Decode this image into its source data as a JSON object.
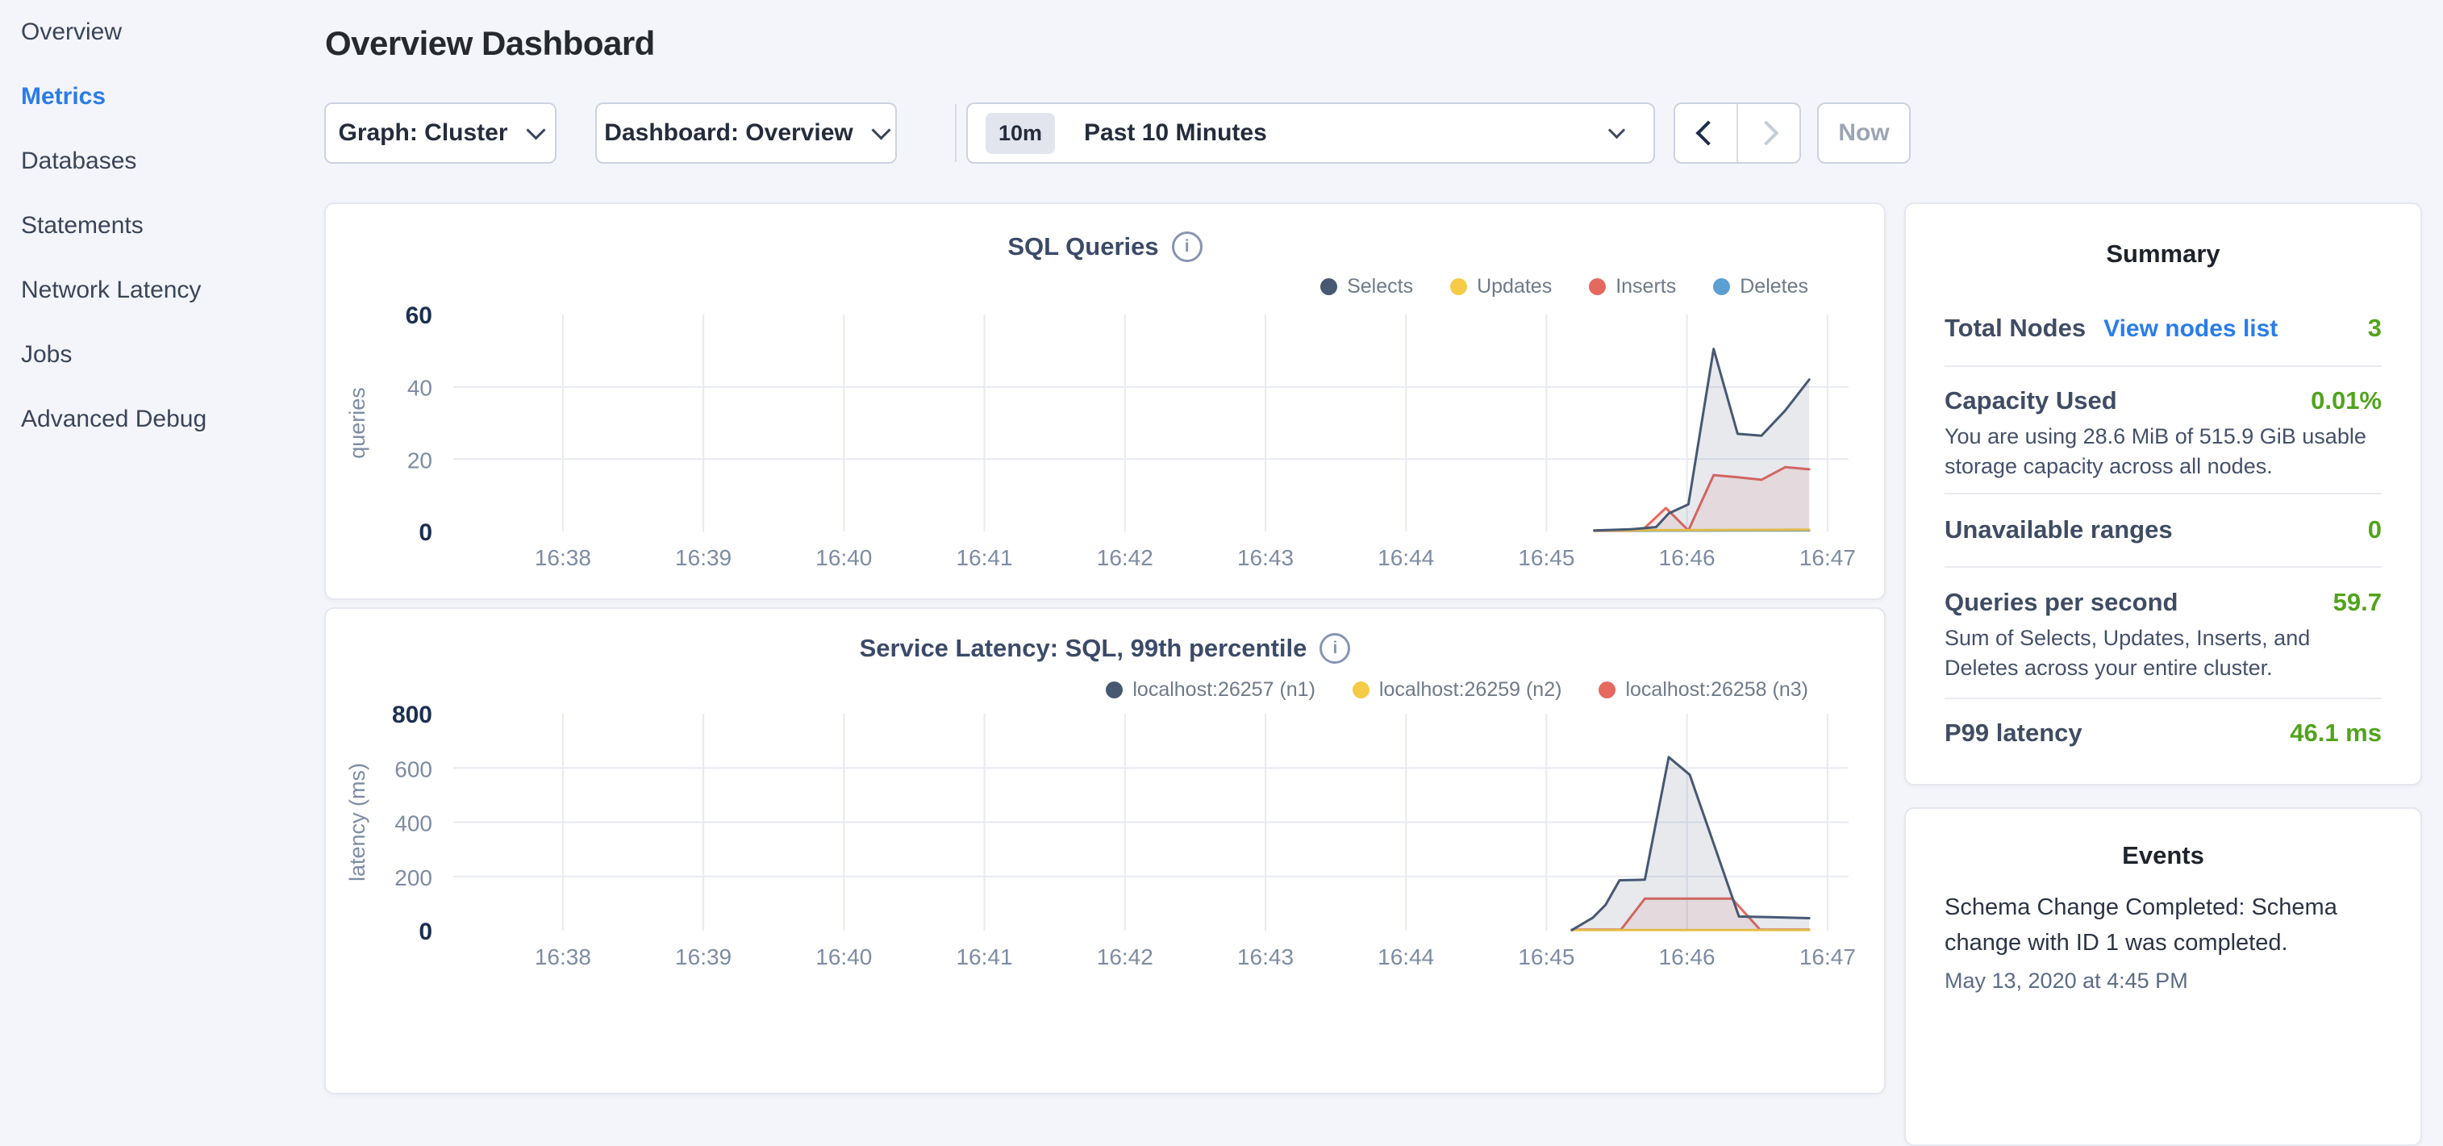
{
  "ui": {
    "accent_color": "#2a7cea",
    "positive_color": "#52a31c"
  },
  "icons": {
    "info": "i"
  },
  "sidebar": {
    "items": [
      {
        "label": "Overview",
        "active": false
      },
      {
        "label": "Metrics",
        "active": true
      },
      {
        "label": "Databases",
        "active": false
      },
      {
        "label": "Statements",
        "active": false
      },
      {
        "label": "Network Latency",
        "active": false
      },
      {
        "label": "Jobs",
        "active": false
      },
      {
        "label": "Advanced Debug",
        "active": false
      }
    ]
  },
  "header": {
    "title": "Overview Dashboard"
  },
  "toolbar": {
    "graph_dropdown": "Graph: Cluster",
    "dashboard_dropdown": "Dashboard: Overview",
    "time_badge": "10m",
    "time_label": "Past 10 Minutes",
    "now_label": "Now"
  },
  "summary": {
    "title": "Summary",
    "rows": [
      {
        "label": "Total Nodes",
        "link": "View nodes list",
        "value": "3"
      },
      {
        "label": "Capacity Used",
        "value": "0.01%",
        "description": "You are using 28.6 MiB of 515.9 GiB usable storage capacity across all nodes."
      },
      {
        "label": "Unavailable ranges",
        "value": "0"
      },
      {
        "label": "Queries per second",
        "value": "59.7",
        "description": "Sum of Selects, Updates, Inserts, and Deletes across your entire cluster."
      },
      {
        "label": "P99 latency",
        "value": "46.1 ms"
      }
    ]
  },
  "events": {
    "title": "Events",
    "items": [
      {
        "message": "Schema Change Completed: Schema change with ID 1 was completed.",
        "timestamp": "May 13, 2020 at 4:45 PM"
      }
    ]
  },
  "chart_data": [
    {
      "type": "area",
      "title": "SQL Queries",
      "ylabel": "queries",
      "xlabel": "",
      "xlim": [
        -0.78,
        9.15
      ],
      "ylim": [
        0,
        60
      ],
      "legend_position": "top-right",
      "grid_color": "#e7eaf1",
      "tick_color": "#7d8ca3",
      "bold_tick_color": "#1c3050",
      "x_ticks": [
        {
          "v": 0,
          "label": "16:38"
        },
        {
          "v": 1,
          "label": "16:39"
        },
        {
          "v": 2,
          "label": "16:40"
        },
        {
          "v": 3,
          "label": "16:41"
        },
        {
          "v": 4,
          "label": "16:42"
        },
        {
          "v": 5,
          "label": "16:43"
        },
        {
          "v": 6,
          "label": "16:44"
        },
        {
          "v": 7,
          "label": "16:45"
        },
        {
          "v": 8,
          "label": "16:46"
        },
        {
          "v": 9,
          "label": "16:47"
        }
      ],
      "y_ticks": [
        {
          "v": 0,
          "label": "0",
          "bold": true,
          "line": false
        },
        {
          "v": 20,
          "label": "20",
          "bold": false,
          "line": true
        },
        {
          "v": 40,
          "label": "40",
          "bold": false,
          "line": true
        },
        {
          "v": 60,
          "label": "60",
          "bold": true,
          "line": false
        }
      ],
      "series": [
        {
          "name": "Selects",
          "color": "#475872",
          "fill": "rgba(71,88,114,0.13)",
          "points": [
            [
              7.34,
              0.3
            ],
            [
              7.6,
              0.6
            ],
            [
              7.78,
              1.2
            ],
            [
              7.87,
              5
            ],
            [
              8.01,
              7.5
            ],
            [
              8.19,
              50.5
            ],
            [
              8.36,
              27
            ],
            [
              8.53,
              26.5
            ],
            [
              8.7,
              33.5
            ],
            [
              8.87,
              42
            ]
          ]
        },
        {
          "name": "Updates",
          "color": "#f5cb47",
          "fill": "rgba(245,203,71,0.12)",
          "points": [
            [
              7.34,
              0.3
            ],
            [
              8.87,
              0.5
            ]
          ]
        },
        {
          "name": "Inserts",
          "color": "#e5695f",
          "fill": "rgba(229,105,95,0.12)",
          "points": [
            [
              7.34,
              0.2
            ],
            [
              7.68,
              0.3
            ],
            [
              7.85,
              6.5
            ],
            [
              8.01,
              0.3
            ],
            [
              8.19,
              15.6
            ],
            [
              8.36,
              15
            ],
            [
              8.53,
              14.3
            ],
            [
              8.7,
              17.8
            ],
            [
              8.87,
              17.2
            ]
          ]
        },
        {
          "name": "Deletes",
          "color": "#5b9fd3",
          "fill": "rgba(91,159,211,0.12)",
          "points": [
            [
              7.34,
              0.15
            ],
            [
              8.87,
              0.3
            ]
          ]
        }
      ]
    },
    {
      "type": "area",
      "title": "Service Latency: SQL, 99th percentile",
      "ylabel": "latency (ms)",
      "xlabel": "",
      "xlim": [
        -0.78,
        9.15
      ],
      "ylim": [
        0,
        800
      ],
      "legend_position": "top-right",
      "grid_color": "#e7eaf1",
      "tick_color": "#7d8ca3",
      "bold_tick_color": "#1c3050",
      "x_ticks": [
        {
          "v": 0,
          "label": "16:38"
        },
        {
          "v": 1,
          "label": "16:39"
        },
        {
          "v": 2,
          "label": "16:40"
        },
        {
          "v": 3,
          "label": "16:41"
        },
        {
          "v": 4,
          "label": "16:42"
        },
        {
          "v": 5,
          "label": "16:43"
        },
        {
          "v": 6,
          "label": "16:44"
        },
        {
          "v": 7,
          "label": "16:45"
        },
        {
          "v": 8,
          "label": "16:46"
        },
        {
          "v": 9,
          "label": "16:47"
        }
      ],
      "y_ticks": [
        {
          "v": 0,
          "label": "0",
          "bold": true,
          "line": false
        },
        {
          "v": 200,
          "label": "200",
          "bold": false,
          "line": true
        },
        {
          "v": 400,
          "label": "400",
          "bold": false,
          "line": true
        },
        {
          "v": 600,
          "label": "600",
          "bold": false,
          "line": true
        },
        {
          "v": 800,
          "label": "800",
          "bold": true,
          "line": false
        }
      ],
      "series": [
        {
          "name": "localhost:26257 (n1)",
          "color": "#475872",
          "fill": "rgba(71,88,114,0.13)",
          "points": [
            [
              7.18,
              2
            ],
            [
              7.33,
              48
            ],
            [
              7.42,
              95
            ],
            [
              7.52,
              186
            ],
            [
              7.7,
              188
            ],
            [
              7.87,
              640
            ],
            [
              8.02,
              575
            ],
            [
              8.37,
              52
            ],
            [
              8.6,
              50
            ],
            [
              8.87,
              46
            ]
          ]
        },
        {
          "name": "localhost:26259 (n2)",
          "color": "#f5cb47",
          "fill": "rgba(245,203,71,0.12)",
          "points": [
            [
              7.18,
              2
            ],
            [
              8.87,
              2
            ]
          ]
        },
        {
          "name": "localhost:26258 (n3)",
          "color": "#e5695f",
          "fill": "rgba(229,105,95,0.12)",
          "points": [
            [
              7.18,
              4
            ],
            [
              7.53,
              4
            ],
            [
              7.7,
              118
            ],
            [
              8.32,
              118
            ],
            [
              8.52,
              4
            ],
            [
              8.87,
              4
            ]
          ]
        }
      ]
    }
  ]
}
